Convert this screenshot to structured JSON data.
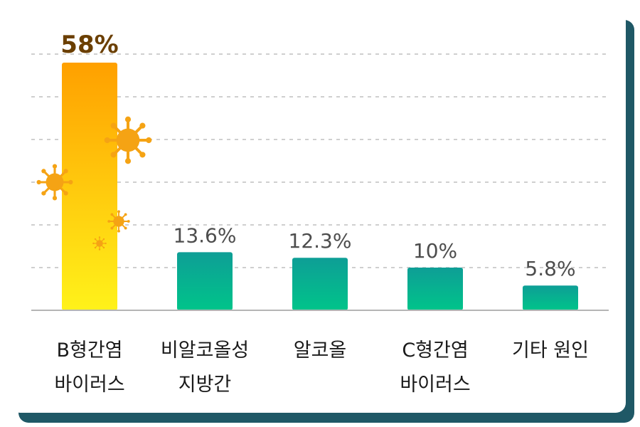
{
  "chart_data": {
    "type": "bar",
    "categories": [
      [
        "B형간염",
        "바이러스"
      ],
      [
        "비알코올성",
        "지방간"
      ],
      [
        "알코올"
      ],
      [
        "C형간염",
        "바이러스"
      ],
      [
        "기타 원인"
      ]
    ],
    "values": [
      58,
      13.6,
      12.3,
      10,
      5.8
    ],
    "value_labels": [
      "58%",
      "13.6%",
      "12.3%",
      "10%",
      "5.8%"
    ],
    "ylim": [
      0,
      60
    ],
    "grid": true,
    "highlight_index": 0,
    "colors": {
      "highlight_top": "#ffa000",
      "highlight_bottom": "#fff21a",
      "bar_top": "#0e9e96",
      "bar_bottom": "#00c48a",
      "highlight_label": "#6b3f00",
      "label": "#4d4d4d",
      "virus": "#f5a314",
      "card_shadow": "#1f5866"
    },
    "decoration_icons": [
      "virus-icon"
    ]
  }
}
